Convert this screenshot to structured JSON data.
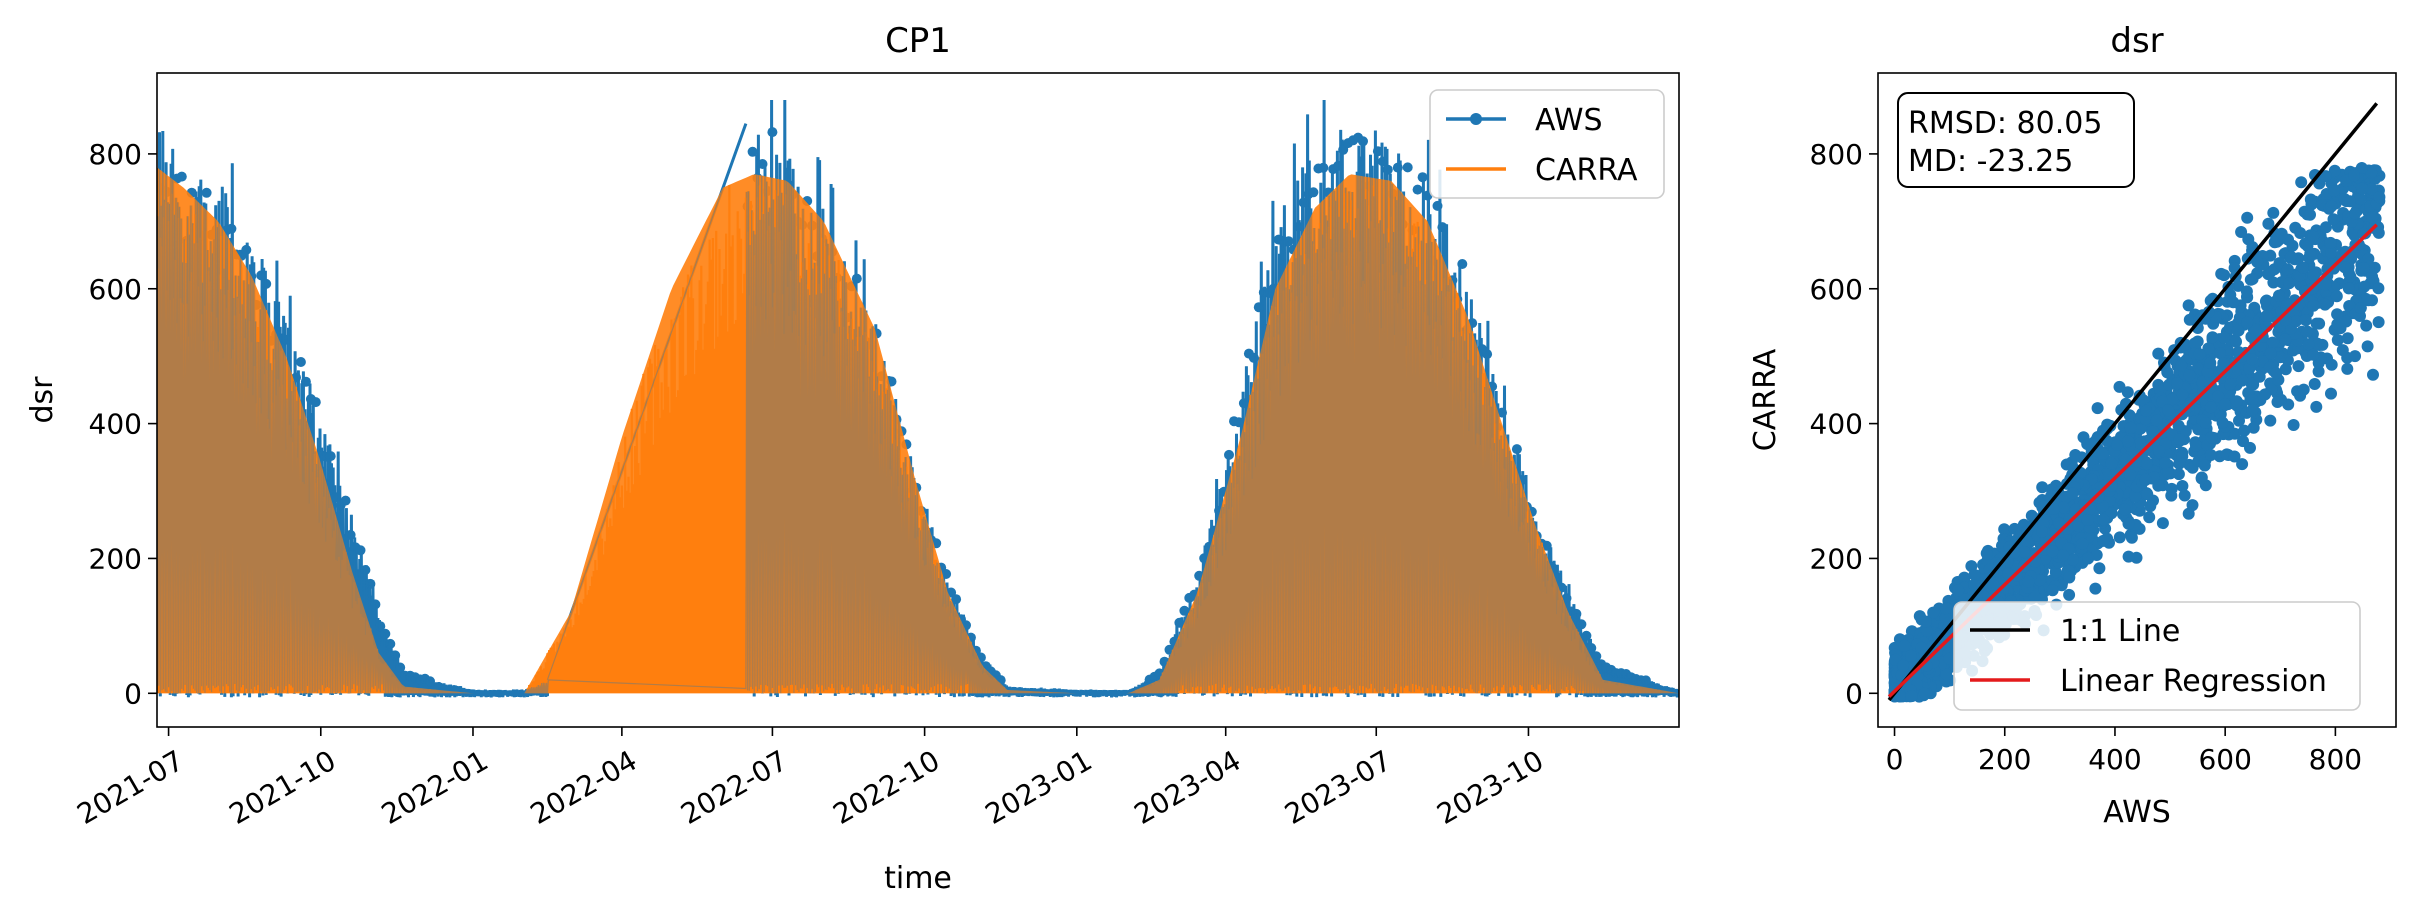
{
  "colors": {
    "aws": "#1f77b4",
    "carra": "#ff7f0e",
    "one_to_one": "#000000",
    "regression": "#e41a1c"
  },
  "chart_data": [
    {
      "type": "line",
      "title": "CP1",
      "xlabel": "time",
      "ylabel": "dsr",
      "xlim": [
        "2021-06-24",
        "2023-12-31"
      ],
      "ylim": [
        -50,
        920
      ],
      "grid": false,
      "legend": {
        "placement": "top-right",
        "entries": [
          "AWS",
          "CARRA"
        ]
      },
      "x_ticks": [
        "2021-07",
        "2021-10",
        "2022-01",
        "2022-04",
        "2022-07",
        "2022-10",
        "2023-01",
        "2023-04",
        "2023-07",
        "2023-10"
      ],
      "y_ticks": [
        "0",
        "200",
        "400",
        "600",
        "800"
      ],
      "series": [
        {
          "name": "AWS",
          "marker": "circle",
          "note_values": "daily-max envelope of the hourly signal, read from the plot",
          "x": [
            "2021-06-24",
            "2021-07-10",
            "2021-07-31",
            "2021-08-20",
            "2021-09-10",
            "2021-09-30",
            "2021-10-20",
            "2021-11-05",
            "2021-11-20",
            "2022-01-01",
            "2022-02-01",
            "2022-02-15",
            "2022-06-15",
            "2022-07-05",
            "2022-08-01",
            "2022-09-01",
            "2022-09-25",
            "2022-10-15",
            "2022-11-05",
            "2022-11-20",
            "2023-01-01",
            "2023-02-01",
            "2023-02-20",
            "2023-03-15",
            "2023-04-10",
            "2023-05-01",
            "2023-05-25",
            "2023-06-15",
            "2023-07-10",
            "2023-08-01",
            "2023-08-25",
            "2023-09-15",
            "2023-10-05",
            "2023-10-25",
            "2023-11-15",
            "2023-12-31"
          ],
          "y": [
            850,
            780,
            760,
            680,
            560,
            420,
            260,
            120,
            30,
            5,
            5,
            20,
            845,
            830,
            720,
            560,
            330,
            170,
            50,
            10,
            5,
            5,
            30,
            180,
            450,
            700,
            820,
            860,
            830,
            760,
            620,
            430,
            280,
            150,
            40,
            5
          ]
        },
        {
          "name": "CARRA",
          "marker": "none",
          "note_values": "daily-max envelope of the hourly signal, read from the plot",
          "x": [
            "2021-06-24",
            "2021-07-10",
            "2021-07-31",
            "2021-08-20",
            "2021-09-10",
            "2021-09-30",
            "2021-10-20",
            "2021-11-05",
            "2021-11-20",
            "2022-01-01",
            "2022-02-01",
            "2022-03-01",
            "2022-04-01",
            "2022-05-01",
            "2022-06-01",
            "2022-06-20",
            "2022-07-10",
            "2022-08-01",
            "2022-09-01",
            "2022-09-25",
            "2022-10-15",
            "2022-11-05",
            "2022-11-20",
            "2023-01-01",
            "2023-02-01",
            "2023-02-20",
            "2023-03-15",
            "2023-04-10",
            "2023-05-01",
            "2023-05-25",
            "2023-06-15",
            "2023-07-10",
            "2023-08-01",
            "2023-08-25",
            "2023-09-15",
            "2023-10-05",
            "2023-10-25",
            "2023-11-15",
            "2023-12-31"
          ],
          "y": [
            780,
            750,
            700,
            620,
            500,
            350,
            180,
            60,
            10,
            0,
            0,
            120,
            380,
            600,
            750,
            770,
            760,
            700,
            540,
            320,
            150,
            40,
            5,
            0,
            0,
            20,
            150,
            380,
            600,
            720,
            770,
            760,
            700,
            560,
            400,
            250,
            120,
            20,
            0
          ]
        }
      ]
    },
    {
      "type": "scatter",
      "title": "dsr",
      "xlabel": "AWS",
      "ylabel": "CARRA",
      "xlim": [
        -30,
        910
      ],
      "ylim": [
        -50,
        920
      ],
      "grid": false,
      "x_ticks": [
        "0",
        "200",
        "400",
        "600",
        "800"
      ],
      "y_ticks": [
        "0",
        "200",
        "400",
        "600",
        "800"
      ],
      "stats": [
        "RMSD: 80.05",
        "MD: -23.25"
      ],
      "legend": {
        "placement": "bottom-right",
        "entries": [
          "1:1 Line",
          "Linear Regression"
        ]
      },
      "reference_line": {
        "name": "1:1 Line",
        "x": [
          -10,
          875
        ],
        "y": [
          -10,
          875
        ]
      },
      "regression_line": {
        "name": "Linear Regression",
        "x": [
          -10,
          875
        ],
        "y": [
          -5,
          695
        ]
      },
      "points_summary": "dense cloud of points between the regression line and the 1:1 line; AWS 0–880, CARRA 0–780"
    }
  ]
}
